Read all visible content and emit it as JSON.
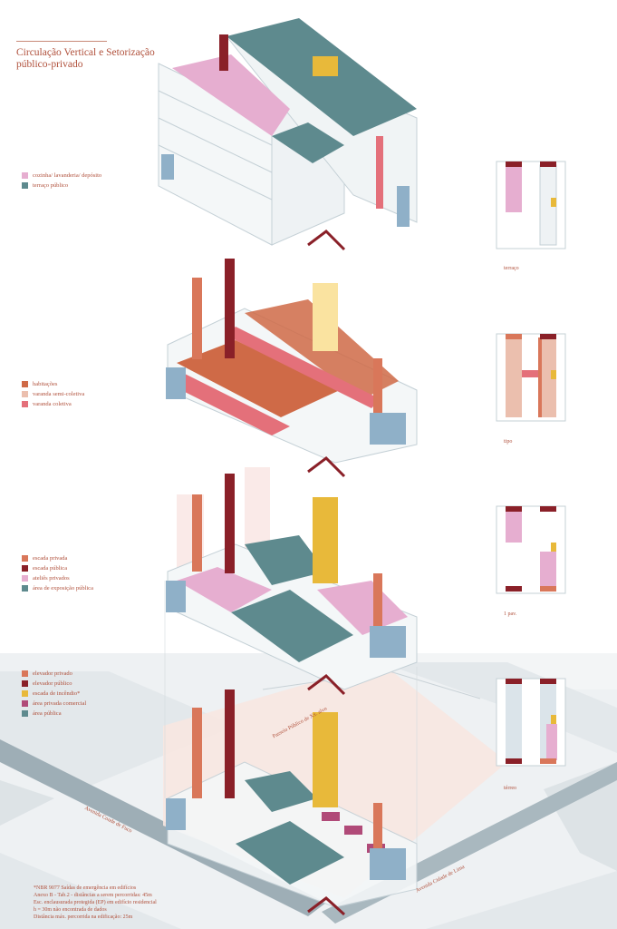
{
  "title": "Circulação Vertical e Setorização público-privado",
  "legends": [
    {
      "items": [
        {
          "label": "cozinha/ lavanderia/ depósito",
          "color": "#e6aed0"
        },
        {
          "label": "terraço público",
          "color": "#5e8a8e"
        }
      ]
    },
    {
      "items": [
        {
          "label": "habitações",
          "color": "#cf6a47"
        },
        {
          "label": "varanda semi-coletiva",
          "color": "#ebbfae"
        },
        {
          "label": "varanda coletiva",
          "color": "#e4707a"
        }
      ]
    },
    {
      "items": [
        {
          "label": "escada privada",
          "color": "#d9775a"
        },
        {
          "label": "escada pública",
          "color": "#8a2028"
        },
        {
          "label": "ateliês privados",
          "color": "#e6aed0"
        },
        {
          "label": "área de exposição pública",
          "color": "#5e8a8e"
        }
      ]
    },
    {
      "items": [
        {
          "label": "elevador privado",
          "color": "#d9775a"
        },
        {
          "label": "elevador público",
          "color": "#8a2028"
        },
        {
          "label": "escada de incêndio*",
          "color": "#e8b93a"
        },
        {
          "label": "área privada comercial",
          "color": "#b04a78"
        },
        {
          "label": "área pública",
          "color": "#5e8a8e"
        }
      ]
    }
  ],
  "plans": [
    {
      "label": "terraço"
    },
    {
      "label": "tipo"
    },
    {
      "label": "1 pav."
    },
    {
      "label": "térreo"
    }
  ],
  "streets": [
    {
      "label": "Passeio Público de Xx. alvo"
    },
    {
      "label": "Avenida Conde de Fuco"
    },
    {
      "label": "Avenida Cidade de Lima"
    }
  ],
  "notes": [
    "*NBR 9077 Saídas de emergência em edifícios",
    "Anexo B - Tab.2 - distâncias a serem percorridas: 45m",
    "Esc. enclausurada protegida (EP) em edifício residencial",
    "h = 30m não encontrada de dados",
    "Distância máx. percorrida na edificação: 25m"
  ],
  "colors": {
    "accent": "#b0503b",
    "teal": "#5e8a8e",
    "pink": "#e6aed0",
    "orange": "#cf6a47",
    "salmon": "#e4707a",
    "darkred": "#8a2028",
    "yellow": "#e8b93a",
    "magenta": "#b04a78",
    "blue": "#8fb0c8",
    "frame": "#c4d0d6"
  }
}
